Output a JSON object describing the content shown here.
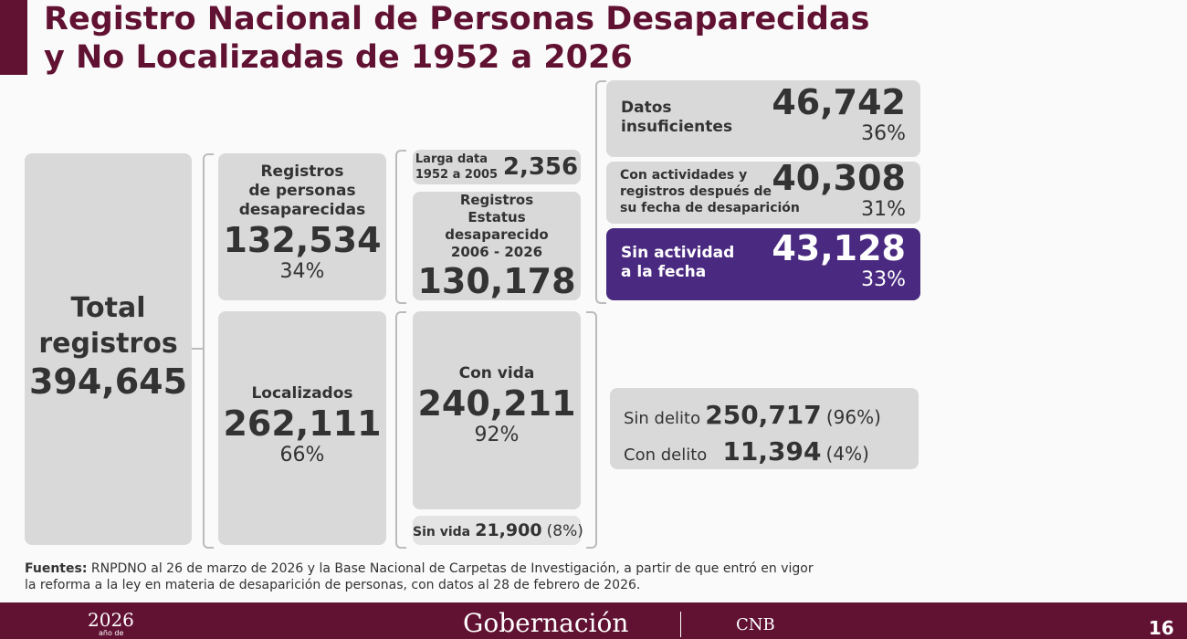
{
  "title_lines": [
    "Registro Nacional de Personas Desaparecidas",
    "y No Localizadas de 1952 a 2026"
  ],
  "total": {
    "label_lines": [
      "Total",
      "registros"
    ],
    "value": "394,645"
  },
  "desaparecidas": {
    "label_lines": [
      "Registros",
      "de personas",
      "desaparecidas"
    ],
    "value": "132,534",
    "percent": "34%"
  },
  "localizados": {
    "label": "Localizados",
    "value": "262,111",
    "percent": "66%"
  },
  "larga_data": {
    "label_lines": [
      "Larga data",
      "1952 a 2005"
    ],
    "value": "2,356"
  },
  "estatus": {
    "label_lines": [
      "Registros",
      "Estatus",
      "desaparecido",
      "2006 - 2026"
    ],
    "value": "130,178"
  },
  "con_vida": {
    "label": "Con vida",
    "value": "240,211",
    "percent": "92%"
  },
  "sin_vida": {
    "label": "Sin vida",
    "value": "21,900",
    "percent": "(8%)"
  },
  "datos_insuficientes": {
    "label_lines": [
      "Datos",
      "insuficientes"
    ],
    "value": "46,742",
    "percent": "36%"
  },
  "con_actividades": {
    "label_lines": [
      "Con actividades y",
      "registros después de",
      "su fecha de desaparición"
    ],
    "value": "40,308",
    "percent": "31%"
  },
  "sin_actividad": {
    "label_lines": [
      "Sin actividad",
      "a la fecha"
    ],
    "value": "43,128",
    "percent": "33%"
  },
  "delito": [
    {
      "label": "Sin delito",
      "value": "250,717",
      "percent": "(96%)"
    },
    {
      "label": "Con delito",
      "value": "11,394",
      "percent": "(4%)"
    }
  ],
  "sources": {
    "label": "Fuentes:",
    "text": "RNPDNO al 26 de marzo de 2026 y la Base Nacional de Carpetas de Investigación, a partir de que entró en vigor la reforma a la ley en materia de desaparición de personas, con datos al 28 de febrero de 2026."
  },
  "footer": {
    "year": "2026",
    "year_sub": "año de",
    "ministry": "Gobernación",
    "agency": "CNB",
    "page": "16"
  }
}
